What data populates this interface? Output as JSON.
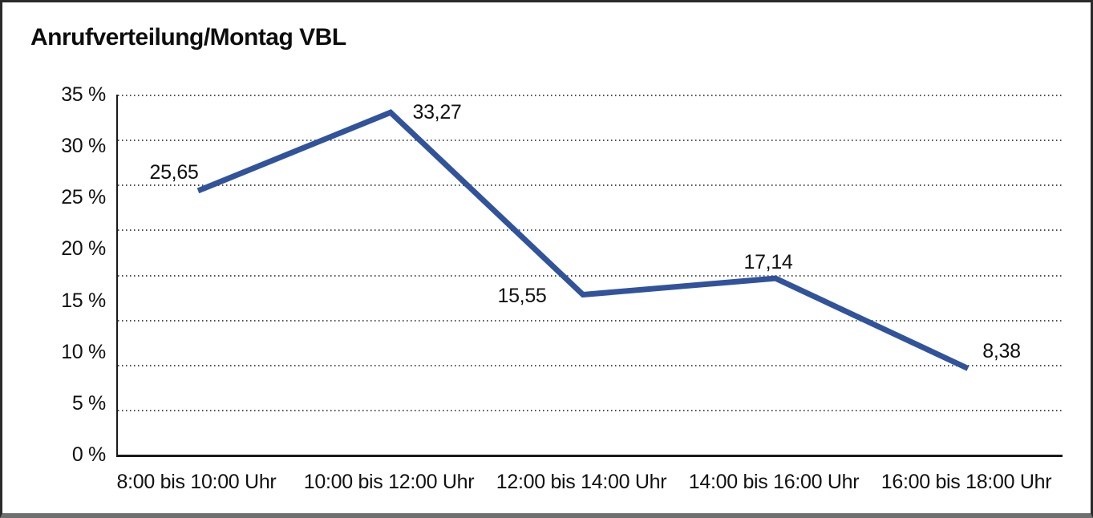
{
  "frame": {
    "background": "#ffffff",
    "border_color": "#2a2a2a",
    "bottom_edge_color": "#6f6f6f"
  },
  "chart_data": {
    "type": "line",
    "title": "Anrufverteilung/Montag VBL",
    "categories": [
      "8:00 bis 10:00 Uhr",
      "10:00 bis 12:00 Uhr",
      "12:00 bis 14:00 Uhr",
      "14:00 bis 16:00 Uhr",
      "16:00 bis 18:00 Uhr"
    ],
    "values": [
      25.65,
      33.27,
      15.55,
      17.14,
      8.38
    ],
    "value_labels": [
      "25,65",
      "33,27",
      "15,55",
      "17,14",
      "8,38"
    ],
    "xlabel": "",
    "ylabel": "",
    "y_tick_labels": [
      "35 %",
      "30 %",
      "25 %",
      "20 %",
      "15 %",
      "10 %",
      "5 %",
      "0 %"
    ],
    "y_tick_values": [
      35,
      30,
      25,
      20,
      15,
      10,
      5,
      0
    ],
    "ylim": [
      0,
      35
    ],
    "legend": "none",
    "grid": {
      "orientation": "horizontal",
      "style": "dotted",
      "color": "#4f4f4f"
    },
    "line_color": "#31539b",
    "line_width": 7,
    "axis_color": "#1a1a1a"
  }
}
